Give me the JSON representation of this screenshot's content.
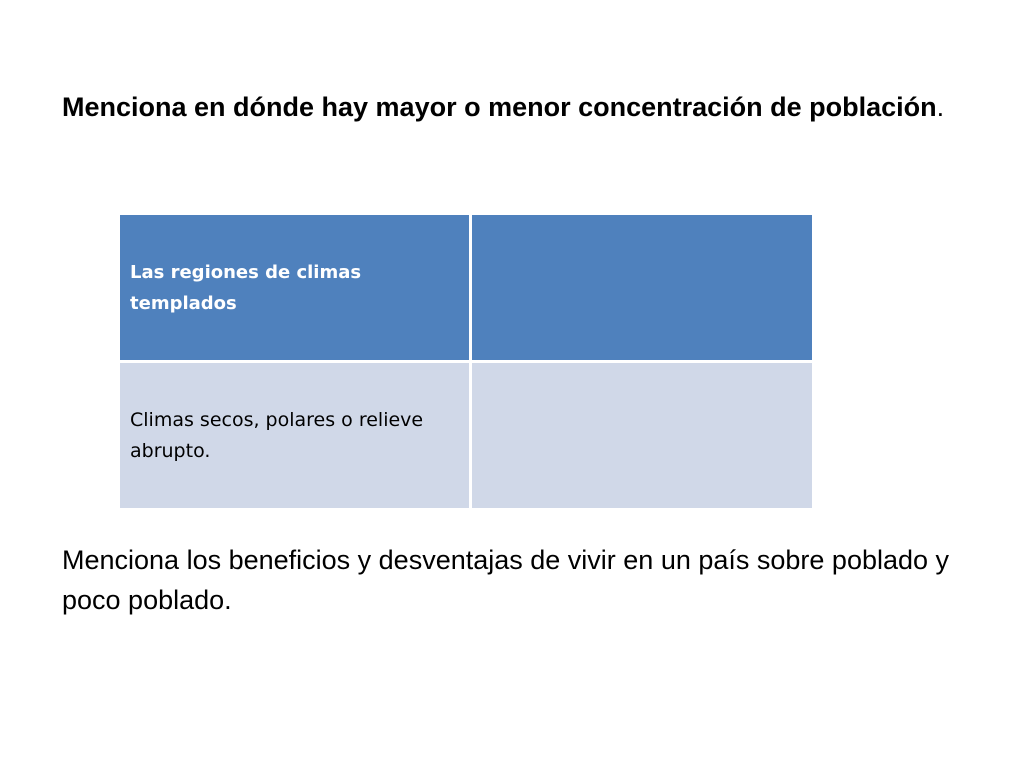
{
  "question_1": {
    "bold_text": "Menciona en dónde hay mayor o menor concentración de población",
    "trailing_text": "."
  },
  "table": {
    "rows": [
      {
        "left": "Las regiones de climas templados",
        "right": ""
      },
      {
        "left": "Climas secos, polares o relieve abrupto.",
        "right": ""
      }
    ],
    "colors": {
      "header_fill": "#4f81bd",
      "body_fill": "#d0d8e8",
      "header_text": "#ffffff"
    }
  },
  "question_2": {
    "text": "Menciona los beneficios y desventajas de vivir en un país sobre poblado y poco poblado."
  }
}
